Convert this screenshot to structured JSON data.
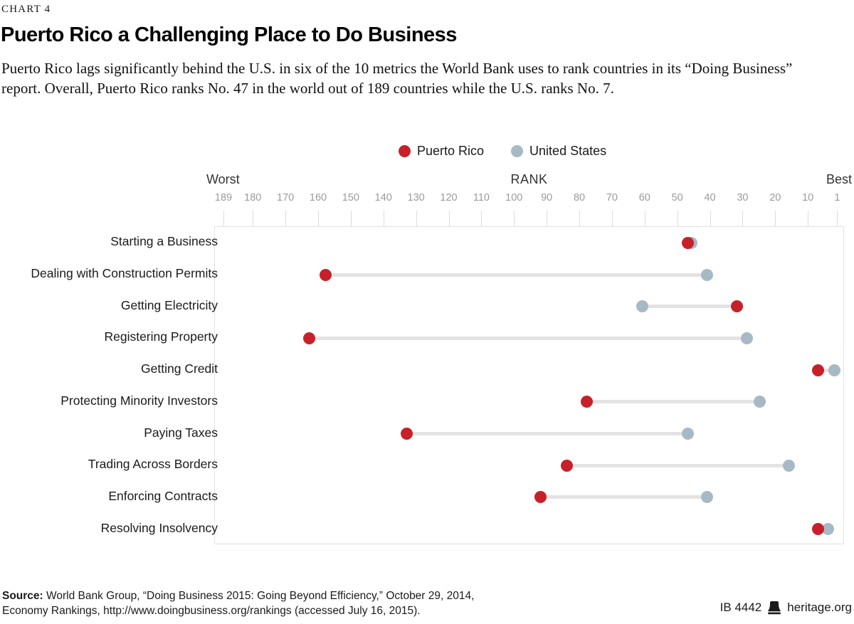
{
  "chart_label": "CHART 4",
  "title": "Puerto Rico a Challenging Place to Do Business",
  "subtitle": "Puerto Rico lags significantly behind the U.S. in six of the 10 metrics the World Bank uses to rank countries in its “Doing Business” report. Overall, Puerto Rico ranks No. 47 in the world out of 189 countries while the U.S. ranks No. 7.",
  "legend": {
    "items": [
      {
        "label": "Puerto Rico",
        "color": "#c8202a"
      },
      {
        "label": "United States",
        "color": "#a7b9c4"
      }
    ]
  },
  "axis": {
    "left_label": "Worst",
    "center_label": "RANK",
    "right_label": "Best",
    "ticks": [
      189,
      180,
      170,
      160,
      150,
      140,
      130,
      120,
      110,
      100,
      90,
      80,
      70,
      60,
      50,
      40,
      30,
      20,
      10,
      1
    ]
  },
  "chart_data": {
    "type": "scatter",
    "variant": "dumbbell",
    "title": "Puerto Rico a Challenging Place to Do Business",
    "xlabel": "RANK",
    "xlim": [
      189,
      1
    ],
    "x_axis_reversed_note": "189 = Worst (left), 1 = Best (right)",
    "legend_position": "top-center",
    "grid": false,
    "categories": [
      "Starting a Business",
      "Dealing with Construction Permits",
      "Getting Electricity",
      "Registering Property",
      "Getting Credit",
      "Protecting Minority Investors",
      "Paying Taxes",
      "Trading Across Borders",
      "Enforcing Contracts",
      "Resolving Insolvency"
    ],
    "series": [
      {
        "name": "Puerto Rico",
        "color": "#c8202a",
        "values": [
          47,
          158,
          32,
          163,
          7,
          78,
          133,
          84,
          92,
          7
        ]
      },
      {
        "name": "United States",
        "color": "#a7b9c4",
        "values": [
          46,
          41,
          61,
          29,
          2,
          25,
          47,
          16,
          41,
          4
        ]
      }
    ],
    "connector_color": "#e3e3e3"
  },
  "footer": {
    "source_label": "Source:",
    "source_line1": " World Bank Group, “Doing Business 2015: Going Beyond Efficiency,” October 29, 2014,",
    "source_line2": "Economy Rankings, http://www.doingbusiness.org/rankings (accessed July 16, 2015).",
    "report_id": "IB 4442",
    "site": "heritage.org"
  }
}
